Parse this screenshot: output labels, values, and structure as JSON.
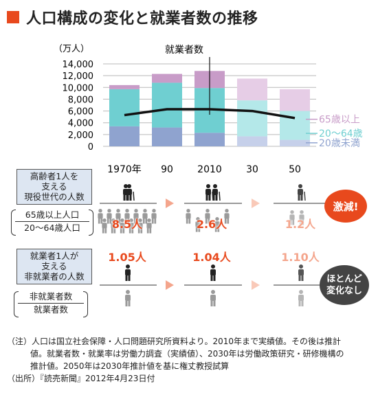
{
  "title": "人口構成の変化と就業者数の推移",
  "colors": {
    "title_square": "#e8491d",
    "over65": "#c89cc8",
    "age20_64": "#6fcfd1",
    "under20": "#8fa3cf",
    "over65_projected": "#e6cde6",
    "age20_64_projected": "#b4e8e9",
    "under20_projected": "#c6d0ea",
    "employed_line": "#111111",
    "accent_red": "#e8491d",
    "badge_gray": "#444444",
    "label_box": "#dde6f2"
  },
  "chart_data": {
    "type": "bar",
    "stacked": true,
    "unit_label": "（万人）",
    "categories": [
      "1970年",
      "90",
      "2010",
      "30",
      "50"
    ],
    "projected_from_index": 3,
    "series": [
      {
        "name": "20歳未満",
        "values": [
          3400,
          3200,
          2300,
          1700,
          1100
        ]
      },
      {
        "name": "20〜64歳",
        "values": [
          6300,
          7600,
          7600,
          6100,
          4900
        ]
      },
      {
        "name": "65歳以上",
        "values": [
          700,
          1500,
          2900,
          3700,
          3700
        ]
      }
    ],
    "line": {
      "name": "就業者数",
      "values": [
        5300,
        6300,
        6300,
        6000,
        4800
      ]
    },
    "ylim": [
      0,
      14000
    ],
    "yticks": [
      "0",
      "2,000",
      "4,000",
      "6,000",
      "8,000",
      "10,000",
      "12,000",
      "14,000"
    ],
    "legend_position": "right"
  },
  "section1": {
    "label_lines": [
      "高齢者1人を",
      "支える",
      "現役世代の人数"
    ],
    "fraction_top": "65歳以上人口",
    "fraction_bottom": "20〜64歳人口",
    "values": [
      "8.5人",
      "2.6人",
      "1.2人"
    ],
    "badge": "激減!"
  },
  "section2": {
    "label_lines": [
      "就業者1人が",
      "支える",
      "非就業者の人数"
    ],
    "fraction_top": "非就業者数",
    "fraction_bottom": "就業者数",
    "values": [
      "1.05人",
      "1.04人",
      "1.10人"
    ],
    "badge_lines": [
      "ほとんど",
      "変化なし"
    ]
  },
  "notes": {
    "line1": "（注）人口は国立社会保障・人口問題研究所資料より。2010年まで実績値。その後は推計",
    "line2": "値。就業者数・就業率は労働力調査（実績値）、2030年は労働政策研究・研修機構の",
    "line3": "推計値。2050年は2030年推計値を基に権丈教授試算",
    "line4": "（出所）『読売新聞』2012年4月23日付"
  }
}
